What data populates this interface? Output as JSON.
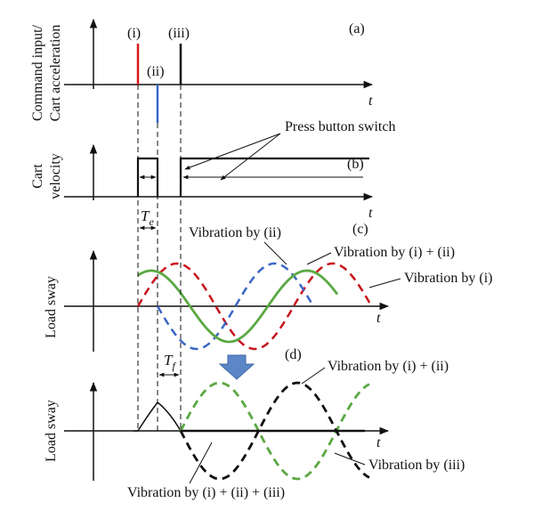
{
  "panel_labels": {
    "a": "(a)",
    "b": "(b)",
    "c": "(c)",
    "d": "(d)"
  },
  "axis_labels": {
    "a_line1": "Command input/",
    "a_line2": "Cart acceleration",
    "b_line1": "Cart",
    "b_line2": "velocity",
    "c": "Load sway",
    "d": "Load sway"
  },
  "time_label": "t",
  "impulse_labels": {
    "i": "(i)",
    "ii": "(ii)",
    "iii": "(iii)"
  },
  "te_label": {
    "base": "T",
    "sub": "e"
  },
  "tf_label": {
    "base": "T",
    "sub": "f"
  },
  "annotations": {
    "press_button": "Press button switch",
    "vib_ii": "Vibration by (ii)",
    "vib_i_ii_c": "Vibration by (i) + (ii)",
    "vib_i": "Vibration by (i)",
    "vib_i_ii_d": "Vibration by (i) + (ii)",
    "vib_iii": "Vibration by (iii)",
    "vib_total": "Vibration by (i) + (ii) + (iii)"
  },
  "colors": {
    "impulse_i": "#d7191c",
    "impulse_ii": "#3a66c4",
    "impulse_iii": "#111111",
    "vib_i": "#c8141c",
    "vib_ii": "#3a66c4",
    "vib_sum": "#5aa842",
    "vib_iii": "#111111",
    "arrow_fill": "#5b86c8"
  }
}
